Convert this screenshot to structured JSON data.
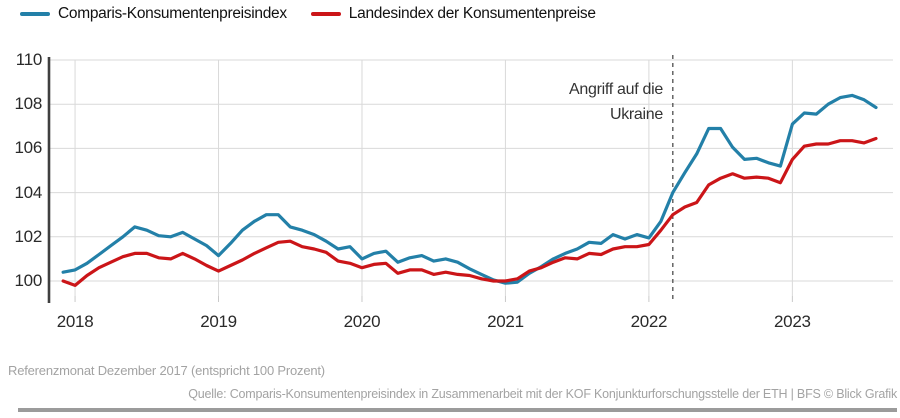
{
  "legend": {
    "items": [
      {
        "label": "Comparis-Konsumentenpreisindex"
      },
      {
        "label": "Landesindex der Konsumentenpreise"
      }
    ]
  },
  "footer": {
    "note": "Referenzmonat Dezember 2017 (entspricht 100 Prozent)",
    "source": "Quelle: Comparis-Konsumentenpreisindex in Zusammenarbeit mit der KOF Konjunkturforschungsstelle der ETH | BFS © Blick Grafik"
  },
  "chart_data": {
    "type": "line",
    "x_unit": "month",
    "x_first": "2017-12",
    "x_labels": [
      "2018",
      "2019",
      "2020",
      "2021",
      "2022",
      "2023"
    ],
    "y_ticks": [
      100,
      102,
      104,
      106,
      108,
      110
    ],
    "ylim": [
      100,
      110
    ],
    "grid": true,
    "legend_position": "top-left",
    "colors": {
      "grid": "#d9d9d9",
      "axis": "#3f3f3f",
      "event_line": "#5a5a5a"
    },
    "event_line": {
      "x": "2022-03",
      "label_display": "Angriff auf die\nUkraine"
    },
    "series": [
      {
        "name": "Comparis-Konsumentenpreisindex",
        "color": "#2380a8",
        "values": [
          100.4,
          100.5,
          100.8,
          101.2,
          101.6,
          102.0,
          102.45,
          102.3,
          102.05,
          102.0,
          102.2,
          101.9,
          101.6,
          101.15,
          101.7,
          102.3,
          102.7,
          103.0,
          103.0,
          102.45,
          102.3,
          102.1,
          101.8,
          101.45,
          101.55,
          101.0,
          101.25,
          101.35,
          100.85,
          101.05,
          101.15,
          100.9,
          101.0,
          100.85,
          100.55,
          100.3,
          100.05,
          99.9,
          99.95,
          100.35,
          100.65,
          101.0,
          101.25,
          101.45,
          101.75,
          101.7,
          102.1,
          101.9,
          102.1,
          101.95,
          102.7,
          104.0,
          104.9,
          105.75,
          106.9,
          106.9,
          106.05,
          105.5,
          105.55,
          105.35,
          105.2,
          107.1,
          107.6,
          107.55,
          108.0,
          108.3,
          108.4,
          108.2,
          107.85
        ]
      },
      {
        "name": "Landesindex der Konsumentenpreise",
        "color": "#cb1518",
        "values": [
          100.0,
          99.8,
          100.25,
          100.6,
          100.85,
          101.1,
          101.25,
          101.25,
          101.05,
          101.0,
          101.25,
          101.0,
          100.7,
          100.45,
          100.7,
          100.95,
          101.25,
          101.5,
          101.75,
          101.8,
          101.55,
          101.45,
          101.3,
          100.9,
          100.8,
          100.6,
          100.75,
          100.8,
          100.35,
          100.5,
          100.5,
          100.3,
          100.4,
          100.3,
          100.25,
          100.1,
          100.0,
          100.0,
          100.1,
          100.45,
          100.6,
          100.85,
          101.05,
          101.0,
          101.25,
          101.2,
          101.45,
          101.55,
          101.55,
          101.65,
          102.3,
          103.0,
          103.35,
          103.55,
          104.35,
          104.65,
          104.85,
          104.65,
          104.7,
          104.65,
          104.45,
          105.5,
          106.1,
          106.2,
          106.2,
          106.35,
          106.35,
          106.25,
          106.45
        ]
      }
    ]
  }
}
